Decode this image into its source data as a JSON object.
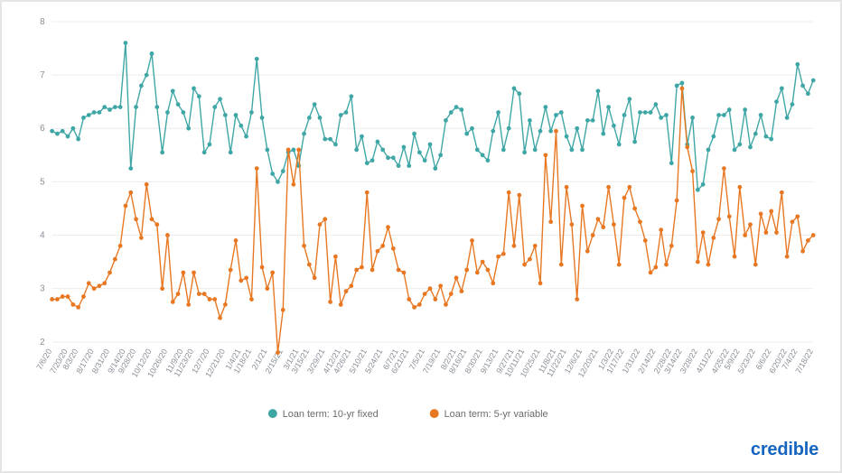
{
  "chart": {
    "type": "line",
    "background_color": "#ffffff",
    "grid_color": "#ececec",
    "axis_label_color": "#8a8f98",
    "axis_fontsize": 10,
    "x_axis_fontsize": 9,
    "ylim": [
      2,
      8
    ],
    "ytick_step": 1,
    "yticks": [
      "2",
      "3",
      "4",
      "5",
      "6",
      "7",
      "8"
    ],
    "x_labels": [
      "7/6/20",
      "7/20/20",
      "8/3/20",
      "8/17/20",
      "8/31/20",
      "9/14/20",
      "9/28/20",
      "10/12/20",
      "10/26/20",
      "11/9/20",
      "11/23/20",
      "12/7/20",
      "12/21/20",
      "1/4/21",
      "1/18/21",
      "2/1/21",
      "2/15/21",
      "3/1/21",
      "3/15/21",
      "3/29/21",
      "4/12/21",
      "4/26/21",
      "5/10/21",
      "5/24/21",
      "6/7/21",
      "6/21/21",
      "7/5/21",
      "7/19/21",
      "8/2/21",
      "8/16/21",
      "8/30/21",
      "9/13/21",
      "9/27/21",
      "10/11/21",
      "10/25/21",
      "11/8/21",
      "11/22/21",
      "12/6/21",
      "12/20/21",
      "1/3/22",
      "1/17/22",
      "1/31/22",
      "2/14/22",
      "2/28/22",
      "3/14/22",
      "3/28/22",
      "4/11/22",
      "4/25/22",
      "5/9/22",
      "5/23/22",
      "6/6/22",
      "6/20/22",
      "7/4/22",
      "7/18/22"
    ],
    "x_label_every": 1,
    "marker_radius": 2.4,
    "line_width": 1.4,
    "series": [
      {
        "name": "10-yr fixed",
        "color": "#3fa6a6",
        "values": [
          5.95,
          5.9,
          5.95,
          5.85,
          6.0,
          5.8,
          6.2,
          6.25,
          6.3,
          6.3,
          6.4,
          6.35,
          6.4,
          6.4,
          7.6,
          5.25,
          6.4,
          6.8,
          7.0,
          7.4,
          6.4,
          5.55,
          6.3,
          6.7,
          6.45,
          6.3,
          6.0,
          6.75,
          6.6,
          5.55,
          5.7,
          6.4,
          6.55,
          6.25,
          5.55,
          6.25,
          6.05,
          5.85,
          6.3,
          7.3,
          6.2,
          5.6,
          5.15,
          5.0,
          5.2,
          5.55,
          5.6,
          5.3,
          5.9,
          6.2,
          6.45,
          6.2,
          5.8,
          5.8,
          5.7,
          6.25,
          6.3,
          6.6,
          5.6,
          5.85,
          5.35,
          5.4,
          5.75,
          5.6,
          5.45,
          5.45,
          5.3,
          5.65,
          5.3,
          5.9,
          5.55,
          5.4,
          5.7,
          5.25,
          5.5,
          6.15,
          6.3,
          6.4,
          6.35,
          5.9,
          6.0,
          5.6,
          5.5,
          5.4,
          5.95,
          6.3,
          5.6,
          6.0,
          6.75,
          6.65,
          5.55,
          6.15,
          5.6,
          5.95,
          6.4,
          5.95,
          6.25,
          6.3,
          5.85,
          5.6,
          6.0,
          5.6,
          6.15,
          6.15,
          6.7,
          5.9,
          6.4,
          6.05,
          5.7,
          6.25,
          6.55,
          5.75,
          6.3,
          6.3,
          6.3,
          6.45,
          6.2,
          6.25,
          5.35,
          6.8,
          6.85,
          5.7,
          6.2,
          4.85,
          4.95,
          5.6,
          5.85,
          6.25,
          6.25,
          6.35,
          5.6,
          5.7,
          6.35,
          5.65,
          5.9,
          6.25,
          5.85,
          5.8,
          6.5,
          6.75,
          6.2,
          6.45,
          7.2,
          6.8,
          6.65,
          6.9
        ]
      },
      {
        "name": "5-yr variable",
        "color": "#e87722",
        "values": [
          2.8,
          2.8,
          2.85,
          2.85,
          2.7,
          2.65,
          2.85,
          3.1,
          3.0,
          3.05,
          3.1,
          3.3,
          3.55,
          3.8,
          4.55,
          4.8,
          4.3,
          3.95,
          4.95,
          4.3,
          4.2,
          3.0,
          4.0,
          2.75,
          2.9,
          3.3,
          2.7,
          3.3,
          2.9,
          2.9,
          2.8,
          2.8,
          2.45,
          2.7,
          3.35,
          3.9,
          3.15,
          3.2,
          2.8,
          5.25,
          3.4,
          3.0,
          3.3,
          1.8,
          2.6,
          5.6,
          4.95,
          5.6,
          3.8,
          3.45,
          3.2,
          4.2,
          4.3,
          2.75,
          3.6,
          2.7,
          2.95,
          3.05,
          3.35,
          3.4,
          4.8,
          3.35,
          3.7,
          3.8,
          4.15,
          3.75,
          3.35,
          3.3,
          2.8,
          2.65,
          2.7,
          2.9,
          3.0,
          2.8,
          3.05,
          2.7,
          2.9,
          3.2,
          2.95,
          3.35,
          3.9,
          3.3,
          3.5,
          3.35,
          3.1,
          3.6,
          3.65,
          4.8,
          3.8,
          4.75,
          3.45,
          3.55,
          3.8,
          3.1,
          5.5,
          4.25,
          5.95,
          3.45,
          4.9,
          4.2,
          2.8,
          4.55,
          3.7,
          4.0,
          4.3,
          4.15,
          4.9,
          4.2,
          3.45,
          4.7,
          4.9,
          4.5,
          4.25,
          3.9,
          3.3,
          3.4,
          4.1,
          3.45,
          3.8,
          4.65,
          6.75,
          5.65,
          5.2,
          3.5,
          4.05,
          3.45,
          3.95,
          4.3,
          5.25,
          4.35,
          3.6,
          4.9,
          4.0,
          4.2,
          3.45,
          4.4,
          4.05,
          4.45,
          4.05,
          4.8,
          3.6,
          4.25,
          4.35,
          3.7,
          3.9,
          4.0
        ]
      }
    ],
    "legend": {
      "items": [
        {
          "label": "Loan term: 10-yr fixed",
          "color": "#3fa6a6"
        },
        {
          "label": "Loan term: 5-yr variable",
          "color": "#e87722"
        }
      ],
      "fontsize": 11,
      "text_color": "#6b6b6b",
      "position": "bottom-center"
    }
  },
  "brand": {
    "text": "credible",
    "color": "#1565c0",
    "font_weight": 700,
    "font_size": 20
  }
}
